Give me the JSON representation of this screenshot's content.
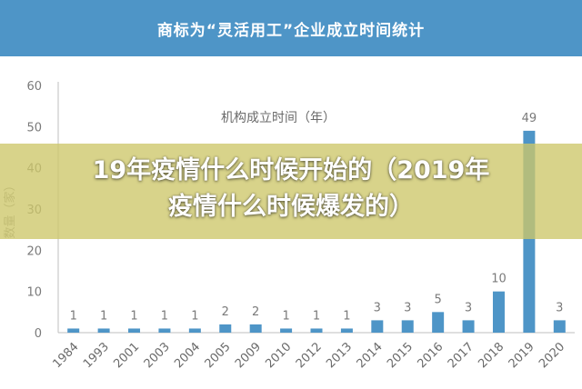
{
  "header": {
    "title": "商标为“灵活用工”企业成立时间统计"
  },
  "overlay": {
    "line1": "19年疫情什么时候开始的（2019年",
    "line2": "疫情什么时候爆发的）"
  },
  "chart_data": {
    "type": "bar",
    "title": "商标为“灵活用工”企业成立时间统计",
    "legend_label": "机构成立时间（年）",
    "ylabel": "数量（家）",
    "xlabel": "",
    "ylim": [
      0,
      60
    ],
    "yticks": [
      0,
      10,
      20,
      30,
      40,
      50,
      60
    ],
    "grid": false,
    "categories": [
      "1984",
      "1993",
      "2001",
      "2003",
      "2004",
      "2005",
      "2009",
      "2010",
      "2012",
      "2013",
      "2014",
      "2015",
      "2016",
      "2017",
      "2018",
      "2019",
      "2020"
    ],
    "values": [
      1,
      1,
      1,
      1,
      1,
      2,
      2,
      1,
      1,
      1,
      3,
      3,
      5,
      3,
      10,
      49,
      3
    ],
    "bar_color": "#4e95c7"
  }
}
